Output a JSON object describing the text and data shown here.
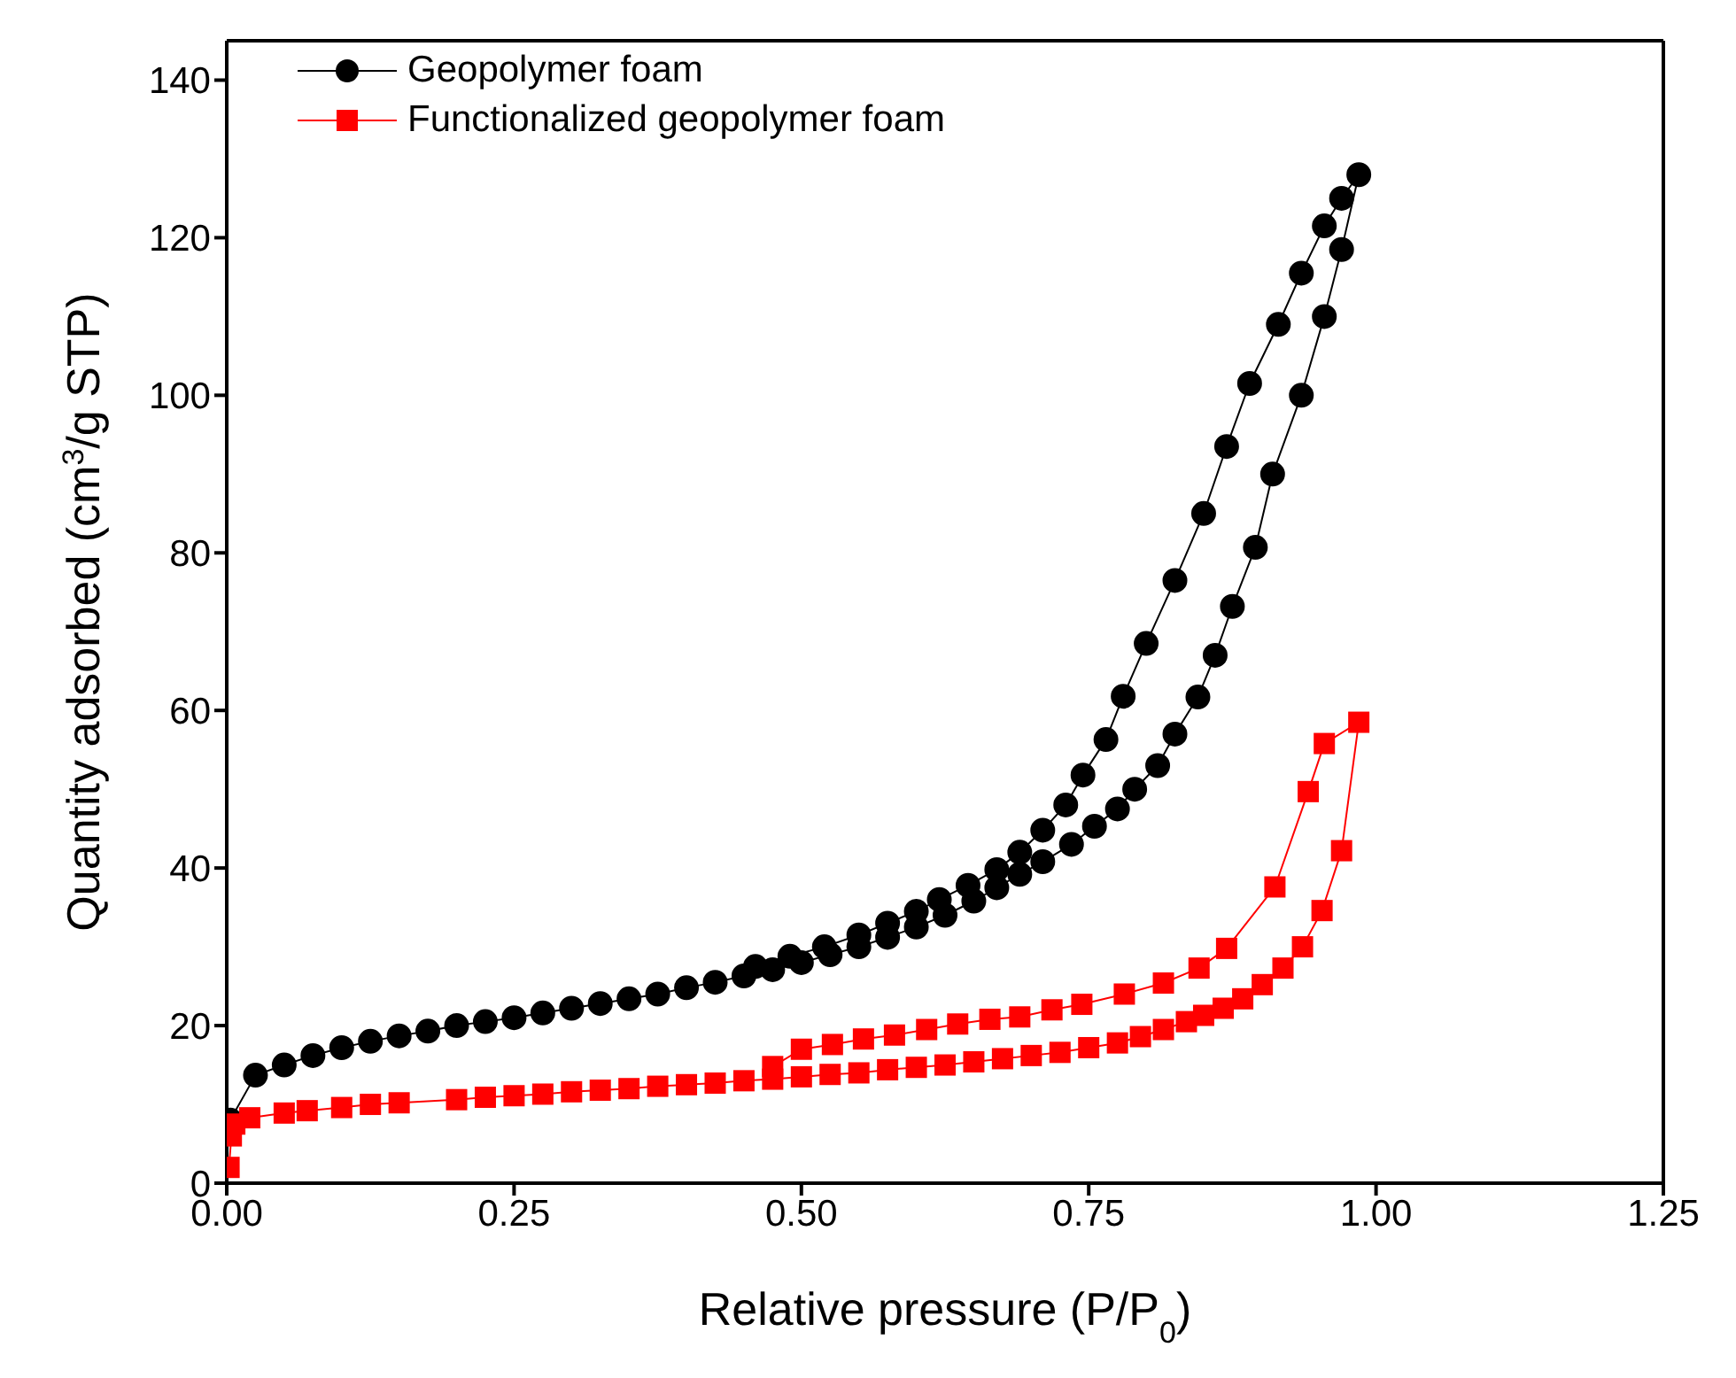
{
  "chart_data": {
    "type": "line",
    "xlabel": "Relative pressure (P/P$_{0}$)",
    "ylabel": "Quantity adsorbed (cm$^{3}$/g STP)",
    "xlim": [
      0,
      1.25
    ],
    "xticks": [
      {
        "value": 0,
        "label": "0.00"
      },
      {
        "value": 0.25,
        "label": "0.25"
      },
      {
        "value": 0.5,
        "label": "0.50"
      },
      {
        "value": 0.75,
        "label": "0.75"
      },
      {
        "value": 1,
        "label": "1.00"
      },
      {
        "value": 1.25,
        "label": "1.25"
      }
    ],
    "ylim": [
      0,
      145
    ],
    "yticks": [
      0,
      20,
      40,
      60,
      80,
      100,
      120,
      140
    ],
    "legend": "top left",
    "line_style": "solid",
    "series": [
      {
        "name": "Geopolymer foam",
        "color": "#000000",
        "marker": "circle",
        "x": [
          0.003,
          0.025,
          0.05,
          0.075,
          0.1,
          0.125,
          0.15,
          0.175,
          0.2,
          0.225,
          0.25,
          0.275,
          0.3,
          0.325,
          0.35,
          0.375,
          0.4,
          0.425,
          0.45,
          0.475,
          0.5,
          0.525,
          0.55,
          0.575,
          0.6,
          0.625,
          0.65,
          0.67,
          0.69,
          0.71,
          0.735,
          0.755,
          0.775,
          0.79,
          0.81,
          0.825,
          0.845,
          0.86,
          0.875,
          0.895,
          0.91,
          0.935,
          0.955,
          0.97,
          0.985,
          0.97,
          0.955,
          0.935,
          0.915,
          0.89,
          0.87,
          0.85,
          0.825,
          0.8,
          0.78,
          0.765,
          0.745,
          0.73,
          0.71,
          0.69,
          0.67,
          0.645,
          0.62,
          0.6,
          0.575,
          0.55,
          0.52,
          0.49,
          0.46
        ],
        "values": [
          8,
          13.7,
          15,
          16.2,
          17.2,
          18,
          18.7,
          19.3,
          20,
          20.5,
          21,
          21.6,
          22.2,
          22.8,
          23.4,
          24,
          24.8,
          25.5,
          26.3,
          27.1,
          28,
          29,
          30,
          31.2,
          32.5,
          34,
          35.8,
          37.5,
          39.2,
          40.8,
          43,
          45.3,
          47.5,
          50,
          53,
          57,
          61.7,
          67,
          73.2,
          80.7,
          90,
          100,
          110,
          118.5,
          128,
          125,
          121.5,
          115.5,
          109,
          101.5,
          93.5,
          85,
          76.5,
          68.5,
          61.8,
          56.3,
          51.8,
          48,
          44.8,
          42,
          39.8,
          37.8,
          36,
          34.5,
          33,
          31.5,
          30,
          28.8,
          27.5
        ]
      },
      {
        "name": "Functionalized geopolymer foam",
        "color": "#ff0000",
        "marker": "square",
        "x": [
          0.002,
          0.004,
          0.007,
          0.02,
          0.05,
          0.07,
          0.1,
          0.125,
          0.15,
          0.2,
          0.225,
          0.25,
          0.275,
          0.3,
          0.325,
          0.35,
          0.375,
          0.4,
          0.425,
          0.45,
          0.475,
          0.5,
          0.525,
          0.55,
          0.575,
          0.6,
          0.625,
          0.65,
          0.675,
          0.7,
          0.725,
          0.75,
          0.775,
          0.795,
          0.815,
          0.835,
          0.85,
          0.867,
          0.884,
          0.901,
          0.919,
          0.936,
          0.953,
          0.97,
          0.985,
          0.955,
          0.941,
          0.912,
          0.87,
          0.846,
          0.815,
          0.781,
          0.744,
          0.718,
          0.69,
          0.664,
          0.636,
          0.609,
          0.581,
          0.554,
          0.527,
          0.5,
          0.475
        ],
        "values": [
          2,
          6,
          7.5,
          8.3,
          8.9,
          9.2,
          9.6,
          10,
          10.2,
          10.6,
          10.9,
          11.1,
          11.3,
          11.6,
          11.8,
          12,
          12.3,
          12.5,
          12.7,
          13,
          13.2,
          13.5,
          13.8,
          14,
          14.4,
          14.7,
          15,
          15.4,
          15.8,
          16.2,
          16.6,
          17.2,
          17.8,
          18.6,
          19.5,
          20.5,
          21.3,
          22.2,
          23.4,
          25.2,
          27.3,
          30,
          34.6,
          42.2,
          58.5,
          55.8,
          49.7,
          37.6,
          29.8,
          27.3,
          25.4,
          24,
          22.7,
          22,
          21.1,
          20.8,
          20.2,
          19.5,
          18.8,
          18.3,
          17.6,
          17,
          14.8
        ]
      }
    ]
  }
}
